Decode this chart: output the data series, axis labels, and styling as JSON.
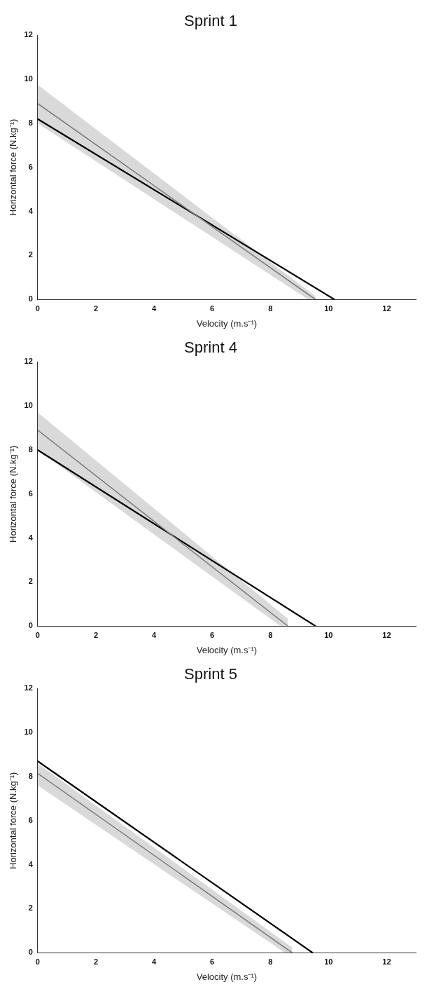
{
  "chart_data": [
    {
      "type": "line",
      "title": "Sprint 1",
      "xlabel": "Velocity (m.s⁻¹)",
      "ylabel": "Horizontal force (N.kg⁻¹)",
      "xlim": [
        0,
        13
      ],
      "ylim": [
        0,
        12
      ],
      "xticks": [
        0,
        2,
        4,
        6,
        8,
        10,
        12
      ],
      "yticks": [
        0,
        2,
        4,
        6,
        8,
        10,
        12
      ],
      "grid": false,
      "legend": false,
      "marker": "none",
      "line_style": "solid",
      "series": [
        {
          "color": "#808080",
          "x": [
            0,
            9.3,
            9.55
          ],
          "values": [
            8.9,
            0.23,
            0
          ],
          "lower": [
            8.0,
            0,
            0
          ],
          "upper": [
            9.75,
            0.4,
            0.15
          ]
        },
        {
          "color": "#000000",
          "x": [
            0,
            10.2
          ],
          "values": [
            8.2,
            0
          ]
        }
      ]
    },
    {
      "type": "line",
      "title": "Sprint 4",
      "xlabel": "Velocity (m.s⁻¹)",
      "ylabel": "Horizontal force (N.kg⁻¹)",
      "xlim": [
        0,
        13
      ],
      "ylim": [
        0,
        12
      ],
      "xticks": [
        0,
        2,
        4,
        6,
        8,
        10,
        12
      ],
      "yticks": [
        0,
        2,
        4,
        6,
        8,
        10,
        12
      ],
      "grid": false,
      "legend": false,
      "marker": "none",
      "line_style": "solid",
      "series": [
        {
          "color": "#808080",
          "x": [
            0,
            8.35,
            8.6
          ],
          "values": [
            8.9,
            0.26,
            0
          ],
          "lower": [
            8.0,
            0,
            0
          ],
          "upper": [
            9.7,
            0.6,
            0.33
          ]
        },
        {
          "color": "#000000",
          "x": [
            0,
            9.55
          ],
          "values": [
            8.0,
            0
          ]
        }
      ]
    },
    {
      "type": "line",
      "title": "Sprint 5",
      "xlabel": "Velocity (m.s⁻¹)",
      "ylabel": "Horizontal force (N.kg⁻¹)",
      "xlim": [
        0,
        13
      ],
      "ylim": [
        0,
        12
      ],
      "xticks": [
        0,
        2,
        4,
        6,
        8,
        10,
        12
      ],
      "yticks": [
        0,
        2,
        4,
        6,
        8,
        10,
        12
      ],
      "grid": false,
      "legend": false,
      "marker": "none",
      "line_style": "solid",
      "series": [
        {
          "color": "#808080",
          "x": [
            0,
            8.5,
            8.75
          ],
          "values": [
            8.15,
            0.23,
            0
          ],
          "lower": [
            7.6,
            0,
            0
          ],
          "upper": [
            8.6,
            0.48,
            0.24
          ]
        },
        {
          "color": "#000000",
          "x": [
            0,
            9.45
          ],
          "values": [
            8.7,
            0
          ]
        }
      ]
    }
  ]
}
